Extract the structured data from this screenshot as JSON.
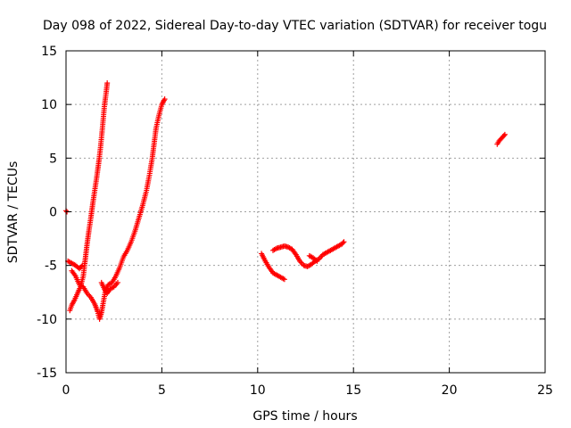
{
  "chart_data": {
    "type": "scatter",
    "title": "Day 098 of 2022, Sidereal Day-to-day VTEC variation (SDTVAR) for receiver togu",
    "xlabel": "GPS time / hours",
    "ylabel": "SDTVAR / TECUs",
    "xlim": [
      0,
      25
    ],
    "ylim": [
      -15,
      15
    ],
    "xticks": [
      {
        "value": 0,
        "label": "0"
      },
      {
        "value": 5,
        "label": "5"
      },
      {
        "value": 10,
        "label": "10"
      },
      {
        "value": 15,
        "label": "15"
      },
      {
        "value": 20,
        "label": "20"
      },
      {
        "value": 25,
        "label": "25"
      }
    ],
    "yticks": [
      {
        "value": -15,
        "label": "-15"
      },
      {
        "value": -10,
        "label": "-10"
      },
      {
        "value": -5,
        "label": "-5"
      },
      {
        "value": 0,
        "label": "0"
      },
      {
        "value": 5,
        "label": "5"
      },
      {
        "value": 10,
        "label": "10"
      },
      {
        "value": 15,
        "label": "15"
      }
    ],
    "grid": true,
    "marker": "plus",
    "color": "#ff0000",
    "series": [
      {
        "points": [
          [
            0.0,
            0.1
          ],
          [
            0.05,
            0.0
          ]
        ]
      },
      {
        "points": [
          [
            0.1,
            -4.6
          ],
          [
            0.3,
            -4.8
          ],
          [
            0.5,
            -5.0
          ],
          [
            0.7,
            -5.3
          ],
          [
            0.85,
            -5.0
          ]
        ]
      },
      {
        "points": [
          [
            0.2,
            -9.2
          ],
          [
            0.3,
            -8.7
          ],
          [
            0.45,
            -8.2
          ],
          [
            0.6,
            -7.6
          ],
          [
            0.75,
            -7.0
          ],
          [
            0.9,
            -6.0
          ],
          [
            1.0,
            -4.5
          ],
          [
            1.1,
            -3.0
          ],
          [
            1.2,
            -1.7
          ],
          [
            1.3,
            -0.5
          ],
          [
            1.4,
            0.8
          ],
          [
            1.5,
            2.0
          ],
          [
            1.6,
            3.2
          ],
          [
            1.7,
            4.5
          ],
          [
            1.8,
            6.0
          ],
          [
            1.9,
            7.8
          ],
          [
            2.0,
            9.8
          ],
          [
            2.1,
            11.2
          ],
          [
            2.15,
            12.0
          ]
        ]
      },
      {
        "points": [
          [
            0.3,
            -5.5
          ],
          [
            0.5,
            -6.0
          ],
          [
            0.7,
            -6.8
          ],
          [
            0.9,
            -7.0
          ],
          [
            1.1,
            -7.6
          ],
          [
            1.3,
            -8.0
          ],
          [
            1.5,
            -8.6
          ],
          [
            1.65,
            -9.3
          ],
          [
            1.75,
            -10.0
          ],
          [
            1.85,
            -9.4
          ],
          [
            1.95,
            -8.4
          ],
          [
            2.05,
            -7.4
          ],
          [
            2.2,
            -6.8
          ],
          [
            2.4,
            -6.6
          ],
          [
            2.6,
            -6.0
          ],
          [
            2.8,
            -5.2
          ],
          [
            3.0,
            -4.2
          ],
          [
            3.2,
            -3.6
          ],
          [
            3.4,
            -2.8
          ],
          [
            3.6,
            -1.8
          ],
          [
            3.8,
            -0.6
          ],
          [
            4.0,
            0.6
          ],
          [
            4.2,
            2.0
          ],
          [
            4.35,
            3.4
          ],
          [
            4.5,
            5.0
          ],
          [
            4.6,
            6.4
          ],
          [
            4.7,
            7.8
          ],
          [
            4.85,
            9.0
          ],
          [
            5.0,
            10.0
          ],
          [
            5.15,
            10.5
          ]
        ]
      },
      {
        "points": [
          [
            1.85,
            -6.6
          ],
          [
            2.0,
            -7.2
          ],
          [
            2.15,
            -7.6
          ],
          [
            2.3,
            -7.2
          ],
          [
            2.5,
            -7.0
          ],
          [
            2.7,
            -6.6
          ]
        ]
      },
      {
        "points": [
          [
            10.2,
            -3.9
          ],
          [
            10.4,
            -4.6
          ],
          [
            10.6,
            -5.2
          ],
          [
            10.8,
            -5.7
          ],
          [
            11.0,
            -5.9
          ],
          [
            11.2,
            -6.1
          ],
          [
            11.4,
            -6.3
          ]
        ]
      },
      {
        "points": [
          [
            10.8,
            -3.6
          ],
          [
            11.0,
            -3.4
          ],
          [
            11.2,
            -3.3
          ],
          [
            11.4,
            -3.2
          ],
          [
            11.6,
            -3.3
          ],
          [
            11.8,
            -3.5
          ],
          [
            12.0,
            -4.0
          ],
          [
            12.2,
            -4.6
          ],
          [
            12.4,
            -5.0
          ],
          [
            12.6,
            -5.1
          ],
          [
            12.8,
            -4.9
          ],
          [
            13.0,
            -4.6
          ],
          [
            13.2,
            -4.4
          ],
          [
            13.4,
            -4.0
          ],
          [
            13.6,
            -3.8
          ],
          [
            13.8,
            -3.6
          ],
          [
            14.0,
            -3.4
          ],
          [
            14.2,
            -3.2
          ],
          [
            14.4,
            -3.0
          ],
          [
            14.5,
            -2.8
          ]
        ]
      },
      {
        "points": [
          [
            12.7,
            -4.1
          ],
          [
            12.9,
            -4.3
          ],
          [
            13.1,
            -4.6
          ]
        ]
      },
      {
        "points": [
          [
            22.5,
            6.3
          ],
          [
            22.6,
            6.6
          ],
          [
            22.7,
            6.8
          ],
          [
            22.8,
            7.0
          ],
          [
            22.9,
            7.2
          ]
        ]
      }
    ]
  }
}
